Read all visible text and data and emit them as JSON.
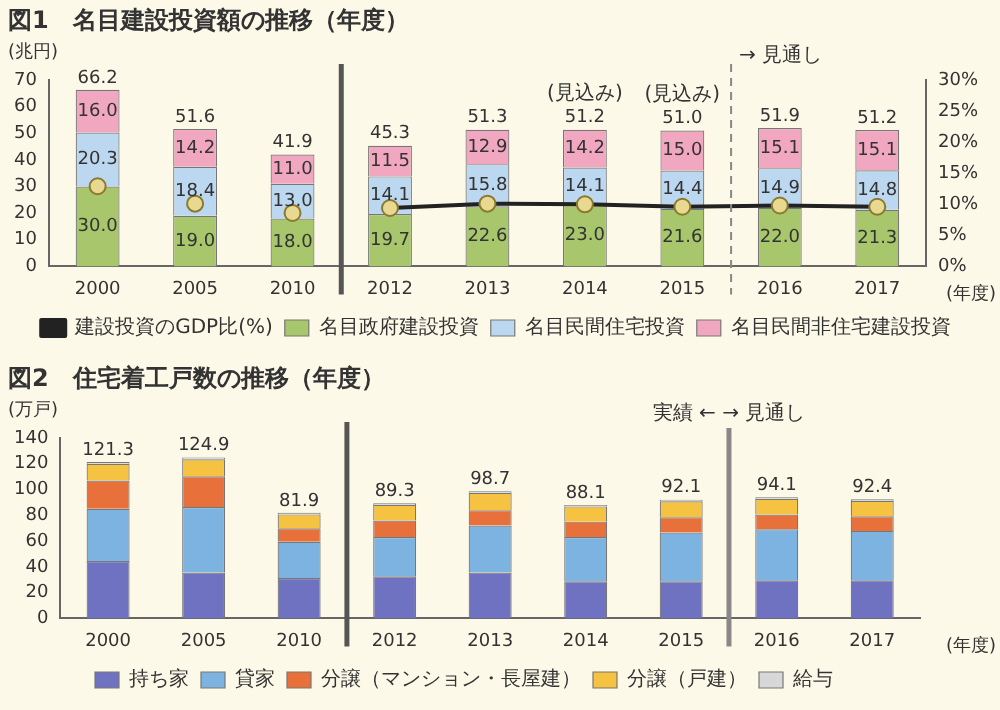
{
  "chart_data": [
    {
      "type": "bar",
      "title": "図1　名目建設投資額の推移（年度）",
      "ylabel": "(兆円)",
      "xlabel": "(年度)",
      "stacked": true,
      "categories": [
        "2000",
        "2005",
        "2010",
        "2012",
        "2013",
        "2014",
        "2015",
        "2016",
        "2017"
      ],
      "series": [
        {
          "name": "名目政府建設投資",
          "color": "#a8c66c",
          "values": [
            30.0,
            19.0,
            18.0,
            19.7,
            22.6,
            23.0,
            21.6,
            22.0,
            21.3
          ],
          "value_labels": [
            "30.0",
            "19.0",
            "18.0",
            "19.7",
            "22.6",
            "23.0",
            "21.6",
            "22.0",
            "21.3"
          ]
        },
        {
          "name": "名目民間住宅投資",
          "color": "#bcd8f0",
          "values": [
            20.3,
            18.4,
            13.0,
            14.1,
            15.8,
            14.1,
            14.4,
            14.9,
            14.8
          ],
          "value_labels": [
            "20.3",
            "18.4",
            "13.0",
            "14.1",
            "15.8",
            "14.1",
            "14.4",
            "14.9",
            "14.8"
          ]
        },
        {
          "name": "名目民間非住宅建設投資",
          "color": "#f2a7c0",
          "values": [
            16.0,
            14.2,
            11.0,
            11.5,
            12.9,
            14.2,
            15.0,
            15.1,
            15.1
          ],
          "value_labels": [
            "16.0",
            "14.2",
            "11.0",
            "11.5",
            "12.9",
            "14.2",
            "15.0",
            "15.1",
            "15.1"
          ]
        },
        {
          "name": "建設投資のGDP比(%)",
          "type": "line",
          "axis": "y2",
          "color": "#222222",
          "colors": [
            null,
            null,
            null,
            "#e8d890",
            "#e8d890",
            "#e8d890",
            "#e8d890",
            "#e8d890",
            "#e8d890"
          ],
          "values": [
            null,
            null,
            null,
            9.4,
            10.1,
            10.0,
            9.6,
            9.8,
            9.6
          ]
        },
        {
          "type": "scatter",
          "axis": "y2",
          "color": "#e8d890",
          "values": [
            12.9,
            10.1,
            8.6,
            null,
            null,
            null,
            null,
            null,
            null
          ]
        }
      ],
      "totals": [
        "66.2",
        "51.6",
        "41.9",
        "45.3",
        "51.3",
        "51.2",
        "51.0",
        "51.9",
        "51.2"
      ],
      "ylim": [
        0,
        70
      ],
      "yticks": [
        0,
        10,
        20,
        30,
        40,
        50,
        60,
        70
      ],
      "y2lim": [
        0,
        30
      ],
      "y2ticks": [
        {
          "value": 0,
          "label": "0%"
        },
        {
          "value": 5,
          "label": "5%"
        },
        {
          "value": 10,
          "label": "10%"
        },
        {
          "value": 15,
          "label": "15%"
        },
        {
          "value": 20,
          "label": "20%"
        },
        {
          "value": 25,
          "label": "25%"
        },
        {
          "value": 30,
          "label": "30%"
        }
      ],
      "ref_lines": [
        {
          "axis": "x",
          "value": "2012",
          "line_style": "solid",
          "color": "#555555"
        },
        {
          "axis": "x",
          "value": "2016",
          "line_style": "dashed",
          "color": "#888888",
          "label": "→ 見通し"
        }
      ],
      "annotations": [
        "(見込み)",
        "(見込み)"
      ],
      "legend": "bottom",
      "marker": "circle",
      "line_style": "solid",
      "grid": false
    },
    {
      "type": "bar",
      "title": "図2　住宅着工戸数の推移（年度）",
      "ylabel": "(万戸)",
      "xlabel": "(年度)",
      "stacked": true,
      "categories": [
        "2000",
        "2005",
        "2010",
        "2012",
        "2013",
        "2014",
        "2015",
        "2016",
        "2017"
      ],
      "series": [
        {
          "name": "持ち家",
          "color": "#6f72c0",
          "values": [
            44.5,
            35.6,
            31.4,
            32.7,
            35.6,
            28.8,
            28.8,
            29.7,
            29.7
          ]
        },
        {
          "name": "貸家",
          "color": "#7cb3e0",
          "values": [
            40.5,
            50.9,
            28.0,
            30.5,
            36.5,
            34.4,
            37.8,
            39.5,
            38.2
          ]
        },
        {
          "name": "分譲（マンション・長屋建）",
          "color": "#e8703a",
          "values": [
            22.0,
            23.8,
            10.6,
            12.8,
            11.9,
            11.9,
            11.9,
            11.4,
            11.4
          ]
        },
        {
          "name": "分譲（戸建）",
          "color": "#f5c242",
          "values": [
            13.0,
            13.2,
            10.7,
            12.1,
            13.5,
            11.8,
            12.4,
            12.3,
            11.9
          ]
        },
        {
          "name": "給与",
          "color": "#d8d8d8",
          "values": [
            1.3,
            1.4,
            1.2,
            1.2,
            1.2,
            1.2,
            1.2,
            1.2,
            1.2
          ]
        }
      ],
      "totals": [
        "121.3",
        "124.9",
        "81.9",
        "89.3",
        "98.7",
        "88.1",
        "92.1",
        "94.1",
        "92.4"
      ],
      "ylim": [
        0,
        140
      ],
      "yticks": [
        0,
        20,
        40,
        60,
        80,
        100,
        120,
        140
      ],
      "ref_lines": [
        {
          "axis": "x",
          "value": "2012",
          "line_style": "solid",
          "color": "#555555"
        },
        {
          "axis": "x",
          "value": "2016",
          "line_style": "solid",
          "color": "#888888",
          "label": "実績 ← → 見通し"
        }
      ],
      "legend": "bottom",
      "grid": false
    }
  ]
}
